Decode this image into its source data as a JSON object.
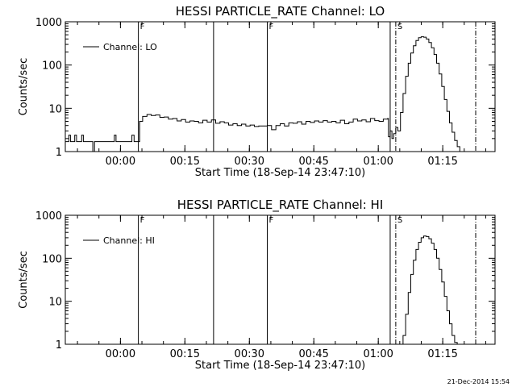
{
  "chart_data": [
    {
      "type": "line",
      "title": "HESSI PARTICLE_RATE Channel: LO",
      "xlabel": "Start Time (18-Sep-14 23:47:10)",
      "ylabel": "Counts/sec",
      "yscale": "log",
      "ylim": [
        1,
        1000
      ],
      "y_ticks": [
        "1",
        "10",
        "100",
        "1000"
      ],
      "x_ticks": [
        "00:00",
        "00:15",
        "00:30",
        "00:45",
        "01:00",
        "01:15"
      ],
      "x_tick_minutes": [
        12.83,
        27.83,
        42.83,
        57.83,
        72.83,
        87.83
      ],
      "xlim_minutes": [
        0,
        100
      ],
      "legend": {
        "position": "top-left",
        "entries": [
          "Channel: LO"
        ]
      },
      "grid": false,
      "markers": [
        {
          "minute": 17.0,
          "style": "solid",
          "label": "F"
        },
        {
          "minute": 34.5,
          "style": "solid",
          "label": ""
        },
        {
          "minute": 47.0,
          "style": "solid",
          "label": "F"
        },
        {
          "minute": 75.6,
          "style": "solid",
          "label": ""
        },
        {
          "minute": 76.9,
          "style": "dashdot",
          "label": "S"
        },
        {
          "minute": 95.5,
          "style": "dashdot",
          "label": ""
        }
      ],
      "series": [
        {
          "name": "Channel: LO",
          "x": [
            0,
            0.5,
            0.8,
            1.2,
            1.8,
            2.2,
            2.6,
            3.0,
            3.4,
            3.8,
            4.2,
            4.6,
            5.0,
            5.4,
            6.0,
            6.4,
            6.8,
            7.2,
            8.0,
            9.0,
            10.0,
            11.0,
            11.4,
            11.8,
            12.2,
            13.5,
            14.5,
            15.0,
            15.5,
            16.0,
            16.6,
            17.0,
            17.3,
            18,
            19,
            20,
            21,
            22,
            23,
            24,
            25,
            26,
            27,
            28,
            29,
            30,
            31,
            32,
            33,
            34,
            35,
            36,
            37,
            38,
            39,
            40,
            41,
            42,
            43,
            44,
            45,
            46,
            47,
            48,
            49,
            50,
            51,
            52,
            53,
            54,
            55,
            56,
            57,
            58,
            59,
            60,
            61,
            62,
            63,
            64,
            65,
            66,
            67,
            68,
            69,
            70,
            71,
            72,
            73,
            74,
            75,
            75.2,
            75.6,
            76.0,
            76.4,
            76.9,
            77.4,
            78.0,
            78.6,
            79.2,
            79.8,
            80.4,
            81.0,
            81.6,
            82.2,
            82.8,
            83.4,
            84.0,
            84.6,
            85.2,
            85.8,
            86.4,
            87.0,
            87.6,
            88.2,
            88.8,
            89.4,
            90.0,
            90.6,
            91.2,
            91.8,
            92.4,
            93.0
          ],
          "y": [
            1.7,
            1.7,
            2.4,
            1.7,
            1.7,
            2.4,
            1.7,
            1.7,
            1.7,
            2.4,
            1.7,
            1.7,
            1.7,
            1.7,
            1.7,
            1.0,
            1.7,
            1.7,
            1.7,
            1.7,
            1.7,
            1.7,
            2.4,
            1.7,
            1.7,
            1.7,
            1.7,
            1.7,
            2.4,
            1.7,
            1.7,
            1.7,
            5.0,
            6.5,
            7.2,
            6.8,
            7.0,
            6.2,
            6.3,
            5.6,
            5.8,
            5.1,
            5.5,
            4.8,
            5.1,
            5.0,
            4.6,
            5.3,
            4.8,
            5.4,
            4.5,
            4.9,
            4.6,
            4.1,
            4.4,
            4.0,
            4.3,
            3.9,
            4.1,
            3.8,
            3.9,
            3.9,
            4.0,
            3.2,
            4.0,
            4.4,
            3.9,
            4.6,
            4.5,
            4.9,
            4.3,
            5.0,
            4.7,
            5.1,
            4.8,
            5.2,
            4.8,
            5.0,
            4.6,
            5.3,
            4.4,
            4.8,
            5.6,
            5.1,
            5.4,
            4.9,
            5.8,
            5.2,
            5.0,
            5.6,
            5.8,
            2.2,
            3.0,
            2.0,
            2.6,
            3.6,
            3.0,
            8.0,
            22,
            55,
            110,
            190,
            280,
            370,
            430,
            450,
            440,
            400,
            330,
            250,
            175,
            110,
            62,
            32,
            16,
            8.5,
            4.6,
            2.8,
            1.8,
            1.3,
            1.0,
            1.0,
            1.0
          ]
        }
      ]
    },
    {
      "type": "line",
      "title": "HESSI PARTICLE_RATE Channel: HI",
      "xlabel": "Start Time (18-Sep-14 23:47:10)",
      "ylabel": "Counts/sec",
      "yscale": "log",
      "ylim": [
        1,
        1000
      ],
      "y_ticks": [
        "1",
        "10",
        "100",
        "1000"
      ],
      "x_ticks": [
        "00:00",
        "00:15",
        "00:30",
        "00:45",
        "01:00",
        "01:15"
      ],
      "x_tick_minutes": [
        12.83,
        27.83,
        42.83,
        57.83,
        72.83,
        87.83
      ],
      "xlim_minutes": [
        0,
        100
      ],
      "legend": {
        "position": "top-left",
        "entries": [
          "Channel: HI"
        ]
      },
      "grid": false,
      "markers": [
        {
          "minute": 17.0,
          "style": "solid",
          "label": "F"
        },
        {
          "minute": 34.5,
          "style": "solid",
          "label": ""
        },
        {
          "minute": 47.0,
          "style": "solid",
          "label": "F"
        },
        {
          "minute": 75.6,
          "style": "solid",
          "label": ""
        },
        {
          "minute": 76.9,
          "style": "dashdot",
          "label": "S"
        },
        {
          "minute": 95.5,
          "style": "dashdot",
          "label": ""
        }
      ],
      "series": [
        {
          "name": "Channel: HI",
          "x": [
            78.2,
            78.6,
            79.2,
            79.8,
            80.4,
            81.0,
            81.6,
            82.2,
            82.8,
            83.4,
            84.0,
            84.6,
            85.2,
            85.8,
            86.4,
            87.0,
            87.6,
            88.2,
            88.8,
            89.4,
            90.0,
            90.6,
            91.2
          ],
          "y": [
            1.0,
            1.6,
            5.0,
            16,
            42,
            90,
            160,
            235,
            300,
            330,
            320,
            285,
            225,
            160,
            100,
            55,
            28,
            13,
            6.0,
            3.0,
            1.6,
            1.1,
            1.0
          ]
        }
      ]
    }
  ],
  "timestamp": "21-Dec-2014 15:54"
}
